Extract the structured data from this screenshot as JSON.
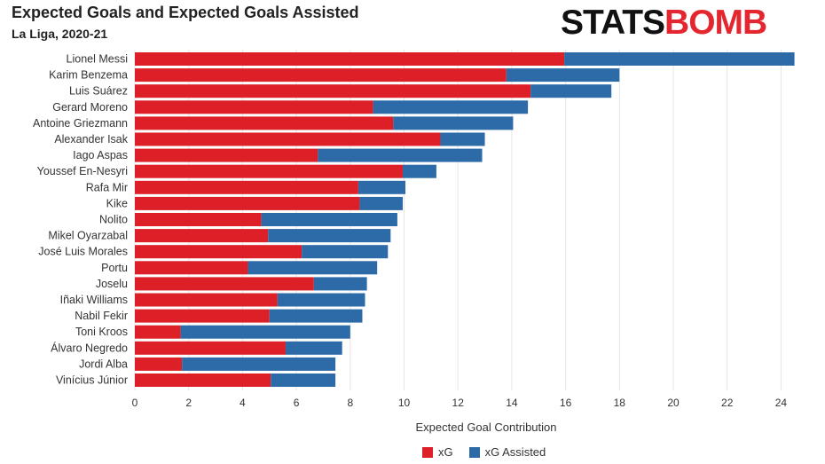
{
  "header": {
    "title": "Expected Goals and Expected Goals Assisted",
    "subtitle": "La Liga, 2020-21",
    "logo_text_part1": "STATS",
    "logo_text_part2": "BOMB"
  },
  "legend": {
    "items": [
      {
        "label": "xG",
        "color": "#dd2027"
      },
      {
        "label": "xG Assisted",
        "color": "#2d6aa8"
      }
    ]
  },
  "chart_data": {
    "type": "bar",
    "orientation": "horizontal",
    "stacked": true,
    "title": "Expected Goals and Expected Goals Assisted",
    "subtitle": "La Liga, 2020-21",
    "xlabel": "Expected Goal Contribution",
    "ylabel": "",
    "xlim": [
      0,
      25
    ],
    "xticks": [
      0,
      2,
      4,
      6,
      8,
      10,
      12,
      14,
      16,
      18,
      20,
      22,
      24
    ],
    "grid": true,
    "legend_position": "bottom",
    "categories": [
      "Lionel Messi",
      "Karim Benzema",
      "Luis Suárez",
      "Gerard Moreno",
      "Antoine Griezmann",
      "Alexander Isak",
      "Iago Aspas",
      "Youssef En-Nesyri",
      "Rafa Mir",
      "Kike",
      "Nolito",
      "Mikel Oyarzabal",
      "José Luis Morales",
      "Portu",
      "Joselu",
      "Iñaki Williams",
      "Nabil Fekir",
      "Toni Kroos",
      "Álvaro Negredo",
      "Jordi Alba",
      "Vinícius Júnior"
    ],
    "series": [
      {
        "name": "xG",
        "color": "#dd2027",
        "values": [
          15.95,
          13.8,
          14.7,
          8.85,
          9.6,
          11.35,
          6.8,
          9.95,
          8.3,
          8.35,
          4.7,
          4.95,
          6.2,
          4.2,
          6.65,
          5.3,
          5.0,
          1.7,
          5.6,
          1.75,
          5.05
        ]
      },
      {
        "name": "xG Assisted",
        "color": "#2d6aa8",
        "values": [
          8.55,
          4.2,
          3.0,
          5.75,
          4.45,
          1.65,
          6.1,
          1.25,
          1.75,
          1.6,
          5.05,
          4.55,
          3.2,
          4.8,
          1.97,
          3.25,
          3.45,
          6.3,
          2.1,
          5.7,
          2.4
        ]
      }
    ]
  }
}
